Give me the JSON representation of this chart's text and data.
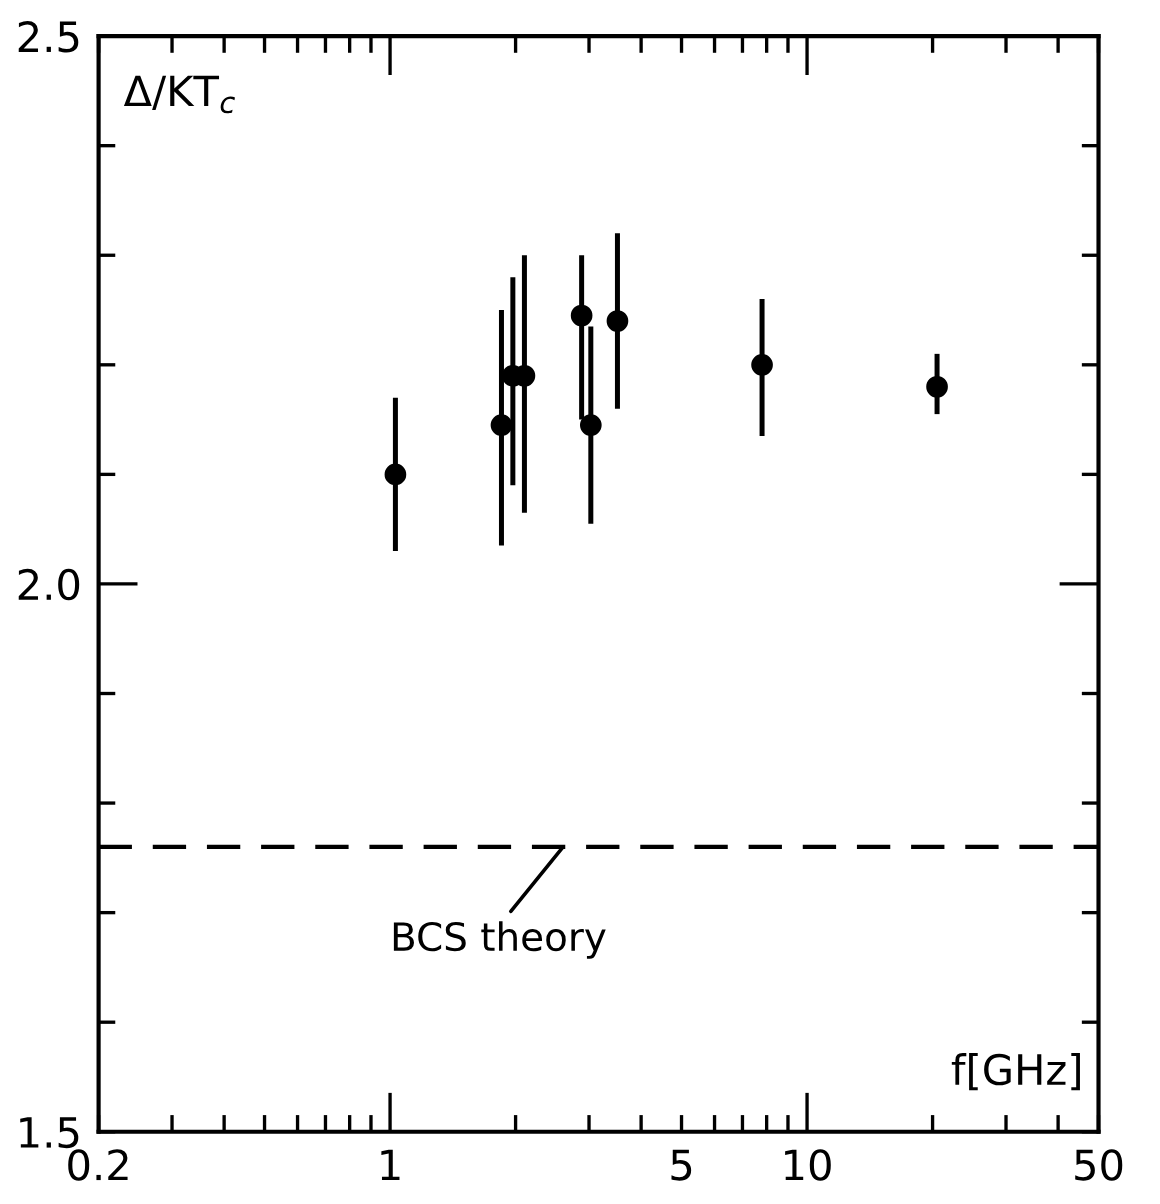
{
  "chart_data": {
    "type": "scatter",
    "xlabel": "f[GHz]",
    "ylabel": "Δ/KT$_{c}$",
    "log": "x",
    "marker": "circle",
    "series": [
      {
        "color": "#000000",
        "x": [
          1.03,
          1.85,
          1.97,
          2.1,
          3.03,
          3.51,
          7.8,
          20.5
        ],
        "values": [
          2.1,
          2.145,
          2.19,
          2.19,
          2.145,
          2.24,
          2.2,
          2.18
        ],
        "errors": [
          [
            2.03,
            2.17
          ],
          [
            2.035,
            2.25
          ],
          [
            2.09,
            2.28
          ],
          [
            2.065,
            2.3
          ],
          [
            2.055,
            2.235
          ],
          [
            2.16,
            2.32
          ],
          [
            2.135,
            2.26
          ],
          [
            2.155,
            2.21
          ]
        ]
      },
      {
        "color": "#000000",
        "x": [
          2.88
        ],
        "values": [
          2.245
        ],
        "errors": [
          [
            2.15,
            2.3
          ]
        ]
      }
    ],
    "ref_lines": [
      {
        "axis": "y",
        "value": 1.76,
        "label": "BCS theory",
        "line_style": "dashed",
        "color": "#000000"
      }
    ],
    "xlim": [
      0.2,
      50
    ],
    "ylim": [
      1.5,
      2.5
    ],
    "xticks": [
      0.2,
      {
        "value": 0.3,
        "label": null
      },
      {
        "value": 0.4,
        "label": null
      },
      {
        "value": 0.5,
        "label": null
      },
      {
        "value": 0.6,
        "label": null
      },
      {
        "value": 0.7,
        "label": null
      },
      {
        "value": 0.8,
        "label": null
      },
      {
        "value": 0.9,
        "label": null
      },
      1,
      {
        "value": 2,
        "label": null
      },
      {
        "value": 3,
        "label": null
      },
      {
        "value": 4,
        "label": null
      },
      5,
      {
        "value": 6,
        "label": null
      },
      {
        "value": 7,
        "label": null
      },
      {
        "value": 8,
        "label": null
      },
      {
        "value": 9,
        "label": null
      },
      10,
      {
        "value": 20,
        "label": null
      },
      {
        "value": 30,
        "label": null
      },
      {
        "value": 40,
        "label": null
      },
      50
    ],
    "yticks": [
      1.5,
      {
        "value": 1.6,
        "label": null
      },
      {
        "value": 1.7,
        "label": null
      },
      {
        "value": 1.8,
        "label": null
      },
      {
        "value": 1.9,
        "label": null
      },
      {
        "value": 2.0,
        "label": "2.0"
      },
      {
        "value": 2.1,
        "label": null
      },
      {
        "value": 2.2,
        "label": null
      },
      {
        "value": 2.3,
        "label": null
      },
      {
        "value": 2.4,
        "label": null
      },
      2.5
    ],
    "grid": false
  }
}
